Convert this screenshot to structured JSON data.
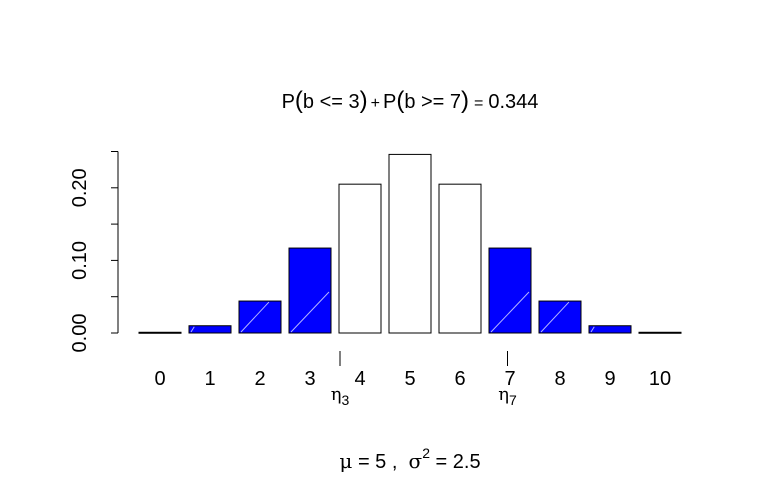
{
  "chart_data": {
    "type": "bar",
    "title": {
      "p1": "P",
      "lp": "(",
      "arg1": "b <= 3",
      "rp": ")",
      "plus": "+",
      "p2": "P",
      "arg2": "b >= 7",
      "eq": "=",
      "value": "0.344"
    },
    "categories": [
      "0",
      "1",
      "2",
      "3",
      "4",
      "5",
      "6",
      "7",
      "8",
      "9",
      "10"
    ],
    "values": [
      0.001,
      0.01,
      0.044,
      0.117,
      0.205,
      0.246,
      0.205,
      0.117,
      0.044,
      0.01,
      0.001
    ],
    "highlight": [
      true,
      true,
      true,
      true,
      false,
      false,
      false,
      true,
      true,
      true,
      true
    ],
    "ylim": [
      0,
      0.25
    ],
    "yticks": [
      0.0,
      0.05,
      0.1,
      0.15,
      0.2,
      0.25
    ],
    "ytick_labels": [
      {
        "value": 0.0,
        "label": "0.00"
      },
      {
        "value": 0.1,
        "label": "0.10"
      },
      {
        "value": 0.2,
        "label": "0.20"
      }
    ],
    "markers": [
      {
        "x": 3.6,
        "sym": "η",
        "sub": "3"
      },
      {
        "x": 6.95,
        "sym": "η",
        "sub": "7"
      }
    ],
    "footer": {
      "mu_sym": "μ",
      "mu_text": " = 5 ,  ",
      "sigma_sym": "σ",
      "sigma_sup": "2",
      "sigma_text": " = 2.5"
    },
    "colors": {
      "highlight": "#0000ff",
      "plain": "#ffffff",
      "hatch": "#b4b4ff",
      "border": "#000000"
    },
    "grid": false
  }
}
